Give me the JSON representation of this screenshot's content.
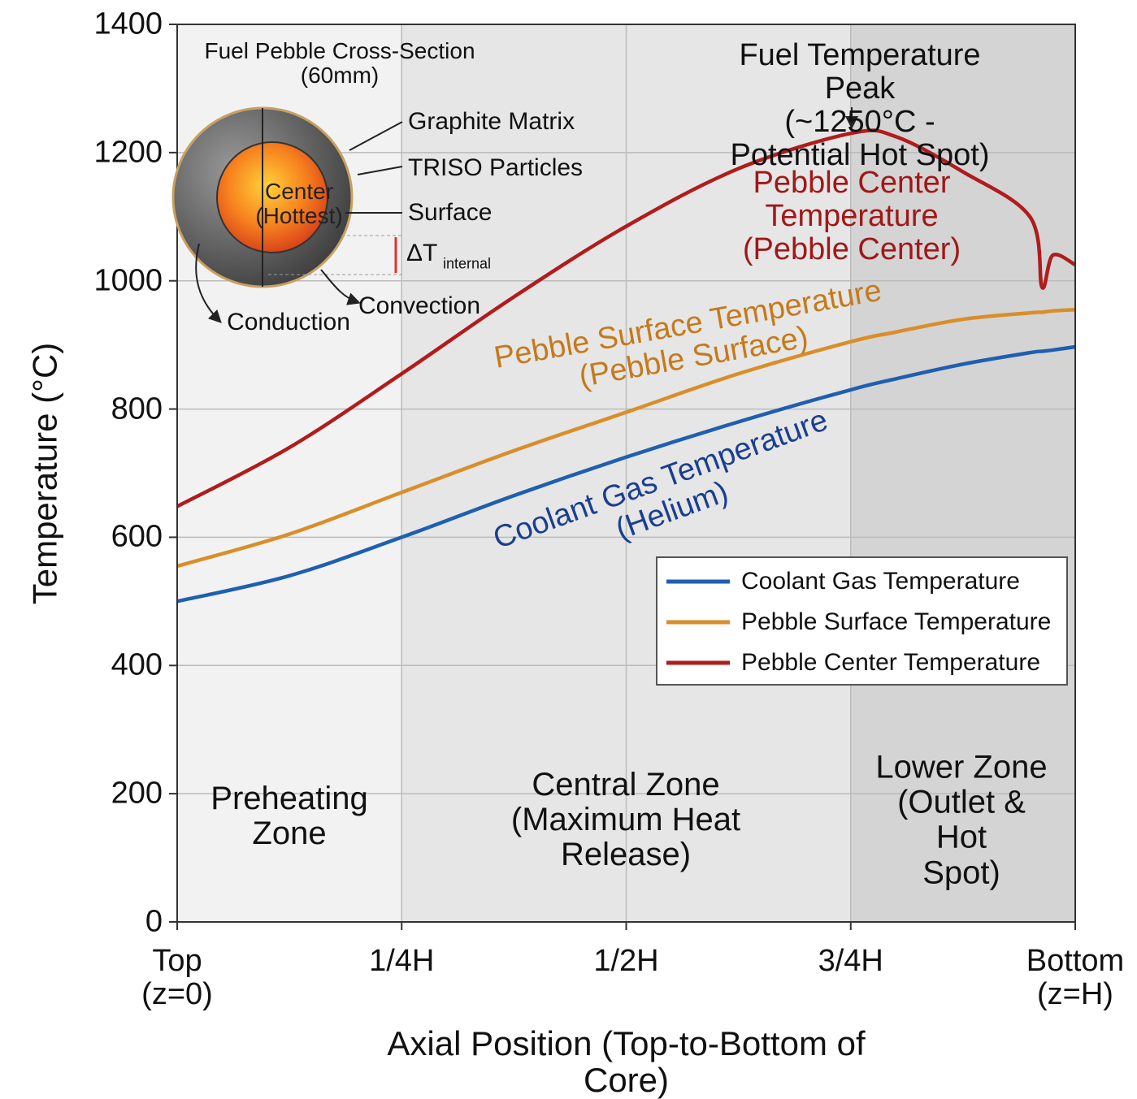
{
  "chart_data": {
    "type": "line",
    "xlabel": "Axial Position (Top-to-Bottom of Core)",
    "ylabel": "Temperature (°C)",
    "x": [
      0,
      0.125,
      0.25,
      0.375,
      0.5,
      0.625,
      0.75,
      0.8,
      0.875,
      0.95,
      0.963,
      0.975,
      1
    ],
    "series": [
      {
        "name": "Coolant Gas Temperature",
        "color": "#1f5fb0",
        "values": [
          500,
          540,
          600,
          665,
          725,
          780,
          830,
          847,
          870,
          888,
          890,
          892,
          897
        ]
      },
      {
        "name": "Pebble Surface Temperature",
        "color": "#d98e2a",
        "values": [
          555,
          605,
          670,
          735,
          795,
          855,
          905,
          920,
          940,
          950,
          951,
          953,
          955
        ]
      },
      {
        "name": "Pebble Center Temperature",
        "color": "#b01c1c",
        "values": [
          648,
          740,
          855,
          975,
          1085,
          1175,
          1230,
          1225,
          1170,
          1099,
          990,
          1040,
          1025
        ]
      }
    ],
    "xlim": [
      0,
      1
    ],
    "xticks": [
      {
        "value": 0,
        "label": "Top\n(z=0)"
      },
      {
        "value": 0.25,
        "label": "1/4H"
      },
      {
        "value": 0.5,
        "label": "1/2H"
      },
      {
        "value": 0.75,
        "label": "3/4H"
      },
      {
        "value": 1,
        "label": "Bottom\n(z=H)"
      }
    ],
    "ylim": [
      0,
      1400
    ],
    "yticks": [
      0,
      200,
      400,
      600,
      800,
      1000,
      1200,
      1400
    ],
    "grid": true,
    "legend": "center right",
    "annotations": [
      "Fuel Temperature Peak\n(~1250°C - Potential Hot Spot)",
      "Pebble Center\nTemperature\n(Pebble Center)",
      "Pebble Surface Temperature\n(Pebble Surface)",
      "Coolant Gas Temperature (Helium)",
      "Preheating\nZone",
      "Central Zone\n(Maximum Heat\nRelease)",
      "Lower Zone\n(Outlet & Hot\nSpot)"
    ],
    "inset": {
      "title": "Fuel Pebble Cross-Section\n(60mm)",
      "labels": [
        "Graphite Matrix",
        "TRISO Particles",
        "Surface",
        "Center\n(Hottest)",
        "Conduction",
        "Convection"
      ],
      "delta": "ΔT",
      "delta_sub": "internal"
    }
  }
}
